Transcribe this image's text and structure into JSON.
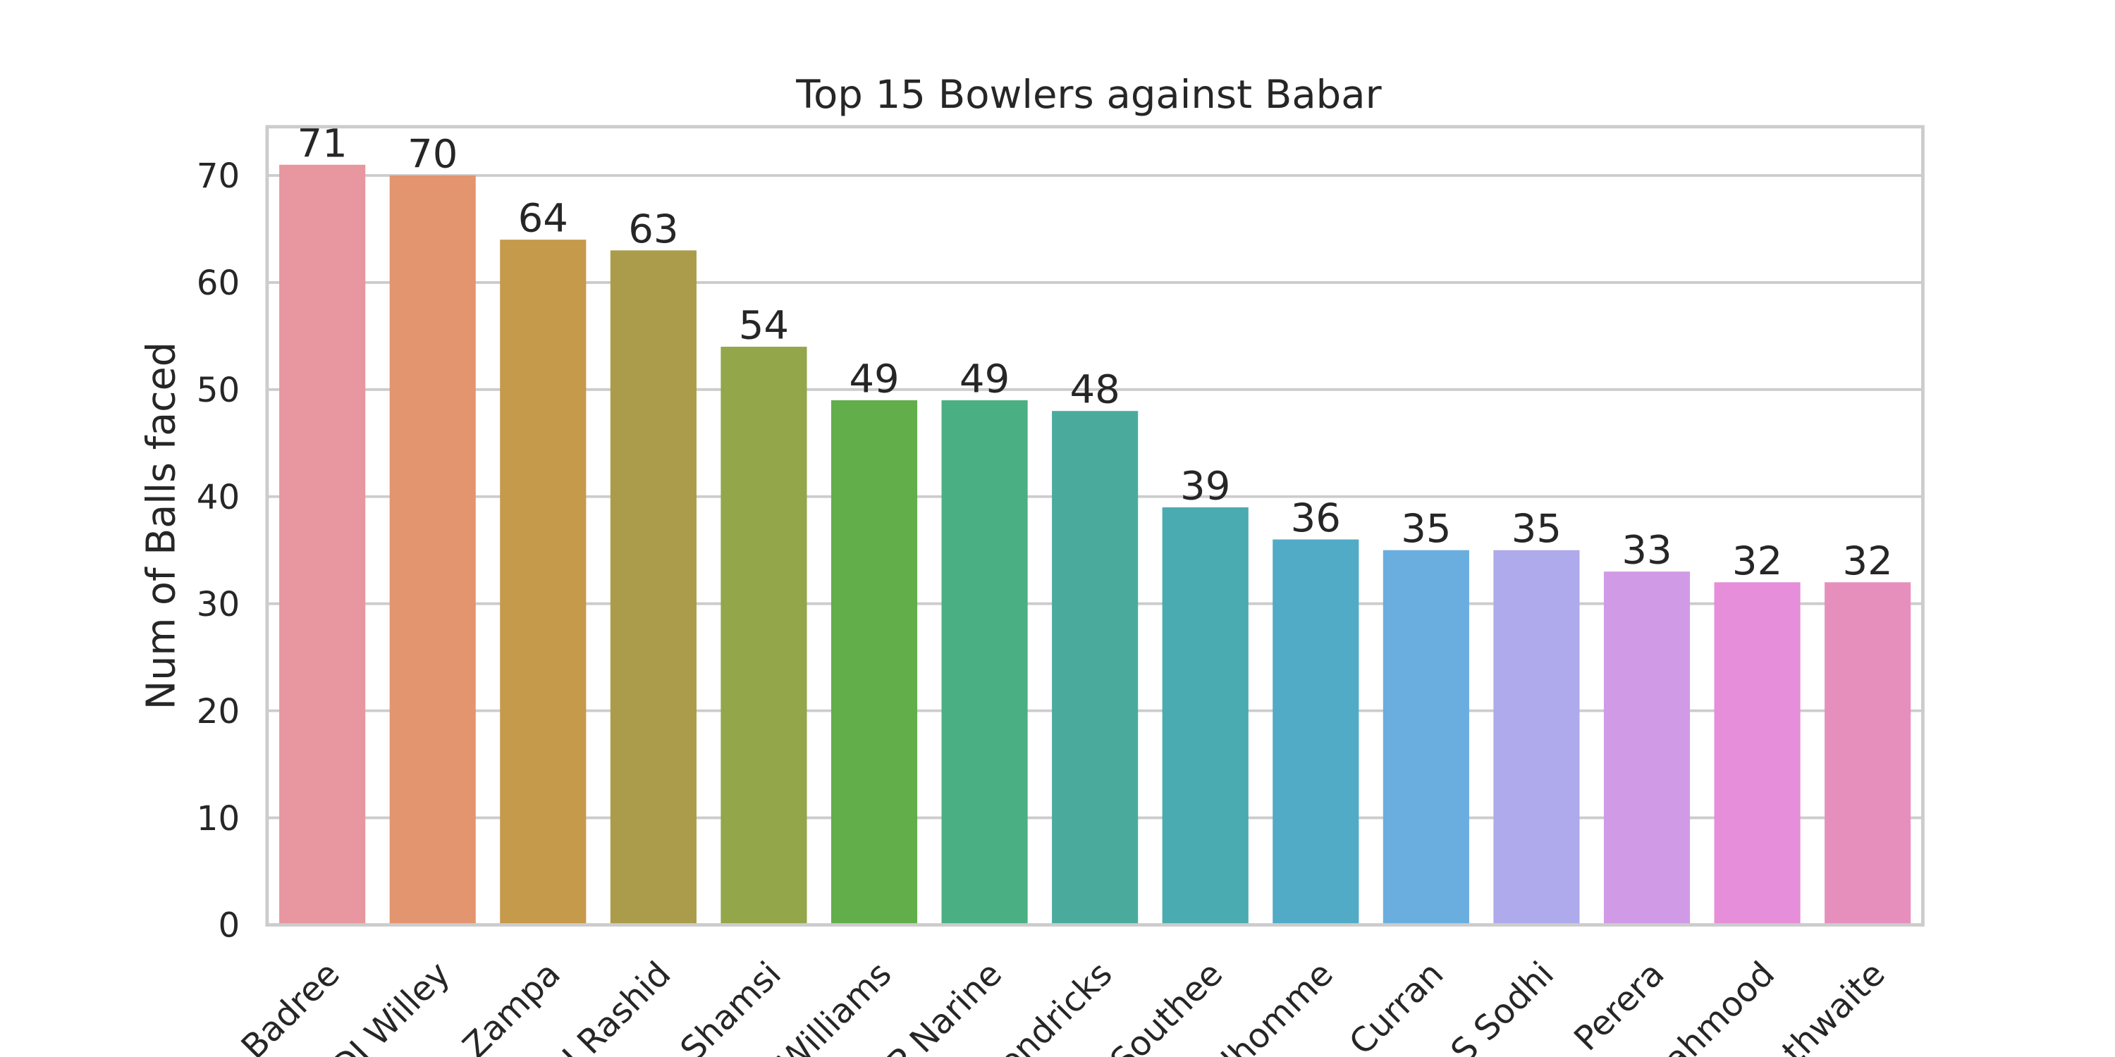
{
  "chart_data": {
    "type": "bar",
    "title": "Top 15 Bowlers against Babar",
    "ylabel": "Num of Balls faced",
    "categories": [
      "Badree",
      "DJ Willey",
      "A Zampa",
      "J Rashid",
      "Shamsi",
      "Williams",
      "P Narine",
      "endricks",
      "Southee",
      "dhomme",
      "Curran",
      "S Sodhi",
      "Perera",
      "ahmood",
      "athwaite"
    ],
    "values": [
      71,
      70,
      64,
      63,
      54,
      49,
      49,
      48,
      39,
      36,
      35,
      35,
      33,
      32,
      32
    ],
    "colors": [
      "#e8969f",
      "#e3956f",
      "#c59a4b",
      "#aa9c4a",
      "#93a649",
      "#61ae4b",
      "#4baf84",
      "#4aab9c",
      "#4aabb0",
      "#51abc6",
      "#6aaee0",
      "#aeaaeb",
      "#d19ae6",
      "#e68ed9",
      "#e68fbd"
    ],
    "ylim": [
      0,
      74.55
    ],
    "yticks": [
      0,
      10,
      20,
      30,
      40,
      50,
      60,
      70
    ],
    "grid": true
  }
}
